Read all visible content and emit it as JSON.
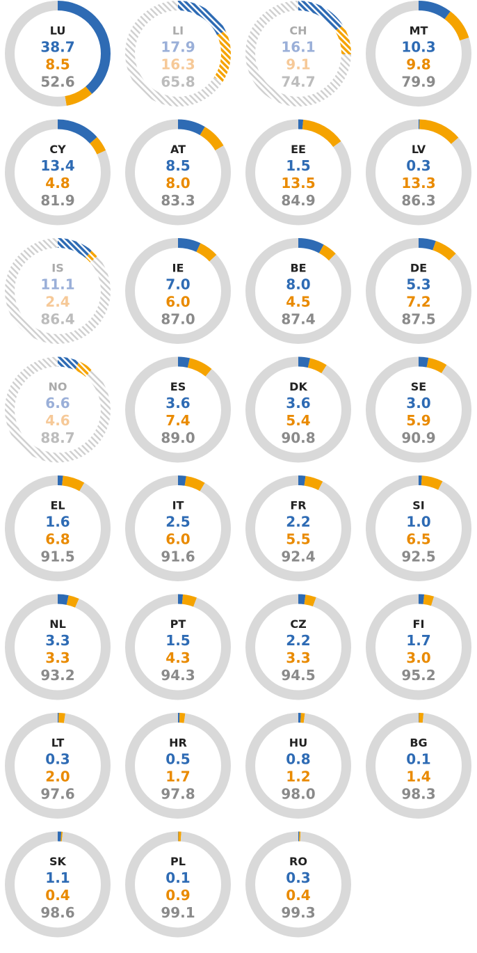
{
  "chart_data": {
    "type": "donut",
    "categories": [
      "LU",
      "LI",
      "CH",
      "MT",
      "CY",
      "AT",
      "EE",
      "LV",
      "IS",
      "IE",
      "BE",
      "DE",
      "NO",
      "ES",
      "DK",
      "SE",
      "EL",
      "IT",
      "FR",
      "SI",
      "NL",
      "PT",
      "CZ",
      "FI",
      "LT",
      "HR",
      "HU",
      "BG",
      "SK",
      "PL",
      "RO"
    ],
    "hatched": [
      false,
      true,
      true,
      false,
      false,
      false,
      false,
      false,
      true,
      false,
      false,
      false,
      true,
      false,
      false,
      false,
      false,
      false,
      false,
      false,
      false,
      false,
      false,
      false,
      false,
      false,
      false,
      false,
      false,
      false,
      false
    ],
    "series": [
      {
        "color": "#2e6bb4",
        "values": [
          38.7,
          17.9,
          16.1,
          10.3,
          13.4,
          8.5,
          1.5,
          0.3,
          11.1,
          7.0,
          8.0,
          5.3,
          6.6,
          3.6,
          3.6,
          3.0,
          1.6,
          2.5,
          2.2,
          1.0,
          3.3,
          1.5,
          2.2,
          1.7,
          0.3,
          0.5,
          0.8,
          0.1,
          1.1,
          0.1,
          0.3
        ],
        "value_labels": [
          "38.7",
          "17.9",
          "16.1",
          "10.3",
          "13.4",
          "8.5",
          "1.5",
          "0.3",
          "11.1",
          "7.0",
          "8.0",
          "5.3",
          "6.6",
          "3.6",
          "3.6",
          "3.0",
          "1.6",
          "2.5",
          "2.2",
          "1.0",
          "3.3",
          "1.5",
          "2.2",
          "1.7",
          "0.3",
          "0.5",
          "0.8",
          "0.1",
          "1.1",
          "0.1",
          "0.3"
        ]
      },
      {
        "color": "#f5a300",
        "values": [
          8.5,
          16.3,
          9.1,
          9.8,
          4.8,
          8.0,
          13.5,
          13.3,
          2.4,
          6.0,
          4.5,
          7.2,
          4.6,
          7.4,
          5.4,
          5.9,
          6.8,
          6.0,
          5.5,
          6.5,
          3.3,
          4.3,
          3.3,
          3.0,
          2.0,
          1.7,
          1.2,
          1.4,
          0.4,
          0.9,
          0.4
        ],
        "value_labels": [
          "8.5",
          "16.3",
          "9.1",
          "9.8",
          "4.8",
          "8.0",
          "13.5",
          "13.3",
          "2.4",
          "6.0",
          "4.5",
          "7.2",
          "4.6",
          "7.4",
          "5.4",
          "5.9",
          "6.8",
          "6.0",
          "5.5",
          "6.5",
          "3.3",
          "4.3",
          "3.3",
          "3.0",
          "2.0",
          "1.7",
          "1.2",
          "1.4",
          "0.4",
          "0.9",
          "0.4"
        ]
      },
      {
        "color": "#d9d9d9",
        "values": [
          52.6,
          65.8,
          74.7,
          79.9,
          81.9,
          83.3,
          84.9,
          86.3,
          86.4,
          87.0,
          87.4,
          87.5,
          88.7,
          89.0,
          90.8,
          90.9,
          91.5,
          91.6,
          92.4,
          92.5,
          93.2,
          94.3,
          94.5,
          95.2,
          97.6,
          97.8,
          98.0,
          98.3,
          98.6,
          99.1,
          99.3
        ],
        "value_labels": [
          "52.6",
          "65.8",
          "74.7",
          "79.9",
          "81.9",
          "83.3",
          "84.9",
          "86.3",
          "86.4",
          "87.0",
          "87.4",
          "87.5",
          "88.7",
          "89.0",
          "90.8",
          "90.9",
          "91.5",
          "91.6",
          "92.4",
          "92.5",
          "93.2",
          "94.3",
          "94.5",
          "95.2",
          "97.6",
          "97.8",
          "98.0",
          "98.3",
          "98.6",
          "99.1",
          "99.3"
        ]
      }
    ]
  }
}
